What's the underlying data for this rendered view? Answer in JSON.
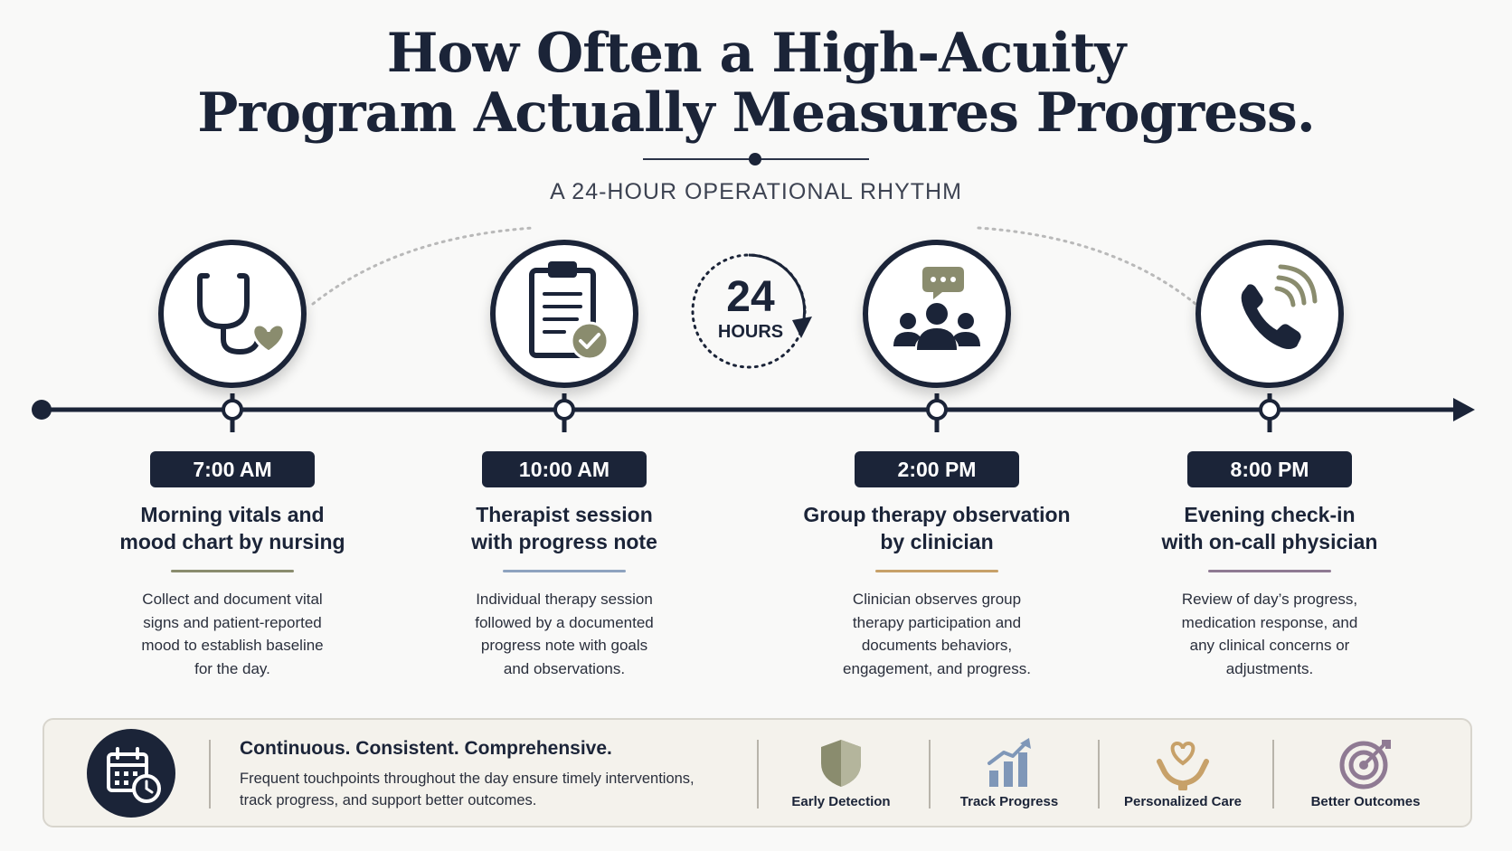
{
  "title": {
    "line1": "How Often a High-Acuity",
    "line2": "Program Actually Measures Progress."
  },
  "subtitle": "A 24-HOUR OPERATIONAL RHYTHM",
  "cycle": {
    "number": "24",
    "label": "HOURS"
  },
  "steps": [
    {
      "time": "7:00 AM",
      "title_lines": [
        "Morning vitals and",
        "mood chart by nursing"
      ],
      "desc_lines": [
        "Collect and document vital",
        "signs and patient-reported",
        "mood to establish baseline",
        "for the day."
      ],
      "icon": "stethoscope-icon",
      "accent": "#8a8c6e"
    },
    {
      "time": "10:00 AM",
      "title_lines": [
        "Therapist session",
        "with progress note"
      ],
      "desc_lines": [
        "Individual therapy session",
        "followed by a documented",
        "progress note with goals",
        "and observations."
      ],
      "icon": "clipboard-check-icon",
      "accent": "#8ea3bf"
    },
    {
      "time": "2:00 PM",
      "title_lines": [
        "Group therapy observation",
        "by clinician"
      ],
      "desc_lines": [
        "Clinician observes group",
        "therapy participation and",
        "documents behaviors,",
        "engagement, and progress."
      ],
      "icon": "group-chat-icon",
      "accent": "#c7a169"
    },
    {
      "time": "8:00 PM",
      "title_lines": [
        "Evening check-in",
        "with on-call physician"
      ],
      "desc_lines": [
        "Review of day’s progress,",
        "medication response, and",
        "any clinical concerns or",
        "adjustments."
      ],
      "icon": "phone-call-icon",
      "accent": "#8f7a93"
    }
  ],
  "banner": {
    "heading": "Continuous. Consistent. Comprehensive.",
    "text_lines": [
      "Frequent touchpoints throughout the day ensure timely interventions,",
      "track progress, and support better outcomes."
    ],
    "icon": "calendar-clock-icon",
    "benefits": [
      {
        "label": "Early Detection",
        "icon": "shield-icon",
        "color": "#8a8c6e"
      },
      {
        "label": "Track Progress",
        "icon": "growth-chart-icon",
        "color": "#7f97b8"
      },
      {
        "label": "Personalized Care",
        "icon": "heart-hands-icon",
        "color": "#c7a169"
      },
      {
        "label": "Better Outcomes",
        "icon": "target-icon",
        "color": "#8f7a93"
      }
    ]
  }
}
